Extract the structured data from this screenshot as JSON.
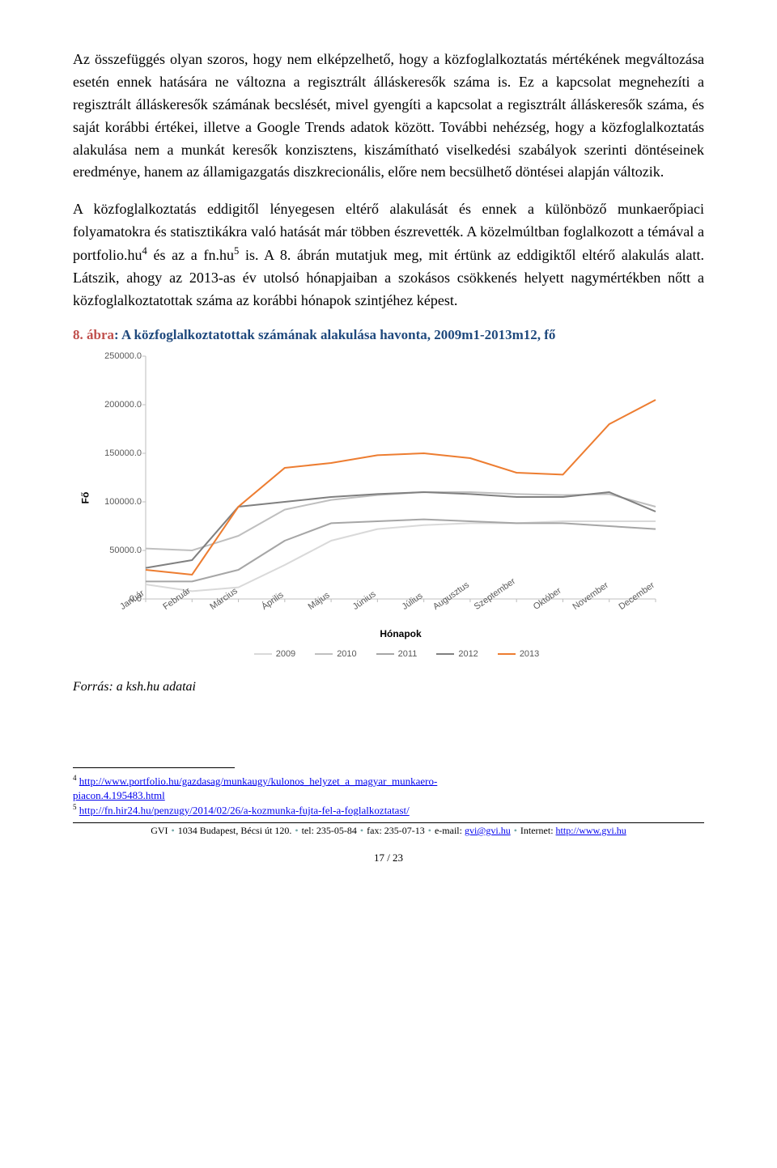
{
  "paragraphs": {
    "p1a": "Az összefüggés olyan szoros, hogy nem elképzelhető, hogy a közfoglalkoztatás mértékének megváltozása esetén ennek hatására ne változna a regisztrált álláskeresők száma is. Ez a kapcsolat megnehezíti a regisztrált álláskeresők számának becslését, mivel gyengíti a kapcsolat a regisztrált álláskeresők száma, és saját korábbi értékei, illetve a Google Trends adatok között. További nehézség, hogy a közfoglalkoztatás alakulása nem a munkát keresők konzisztens, kiszámítható viselkedési szabályok szerinti döntéseinek eredménye, hanem az államigazgatás diszkrecionális, előre nem becsülhető döntései alapján változik.",
    "p2a": "A közfoglalkoztatás eddigitől lényegesen eltérő alakulását és ennek a különböző munkaerőpiaci folyamatokra és statisztikákra való hatását már többen észrevették. A közelmúltban foglalkozott a témával a portfolio.hu",
    "p2b": " és az a fn.hu",
    "p2c": " is. A 8. ábrán mutatjuk meg, mit értünk az eddigiktől eltérő alakulás alatt. Látszik, ahogy az 2013-as év utolsó hónapjaiban a szokásos csökkenés helyett nagymértékben nőtt a közfoglalkoztatottak száma az korábbi hónapok szintjéhez képest.",
    "sup4": "4",
    "sup5": "5"
  },
  "figure": {
    "num": "8. ábra",
    "title": ": A közfoglalkoztatottak számának alakulása havonta, 2009m1-2013m12, fő"
  },
  "chart": {
    "type": "line",
    "ylabel": "Fő",
    "xlabel": "Hónapok",
    "ylim": [
      0,
      250000
    ],
    "ytick_step": 50000,
    "yticks": [
      "0.0",
      "50000.0",
      "100000.0",
      "150000.0",
      "200000.0",
      "250000.0"
    ],
    "categories": [
      "Január",
      "Február",
      "Március",
      "Április",
      "Május",
      "Június",
      "Július",
      "Augusztus",
      "Szeptember",
      "Október",
      "November",
      "December"
    ],
    "grid_color": "#d9d9d9",
    "axis_color": "#bfbfbf",
    "background_color": "#ffffff",
    "label_fontsize": 11,
    "line_width": 2,
    "series": [
      {
        "name": "2009",
        "color": "#d9d9d9",
        "values": [
          15000,
          8000,
          12000,
          35000,
          60000,
          72000,
          76000,
          78000,
          78000,
          80000,
          80000,
          80000
        ]
      },
      {
        "name": "2010",
        "color": "#bfbfbf",
        "values": [
          52000,
          50000,
          65000,
          92000,
          102000,
          107000,
          110000,
          110000,
          108000,
          107000,
          108000,
          95000
        ]
      },
      {
        "name": "2011",
        "color": "#a6a6a6",
        "values": [
          18000,
          18000,
          30000,
          60000,
          78000,
          80000,
          82000,
          80000,
          78000,
          78000,
          75000,
          72000
        ]
      },
      {
        "name": "2012",
        "color": "#808080",
        "values": [
          32000,
          40000,
          95000,
          100000,
          105000,
          108000,
          110000,
          108000,
          105000,
          105000,
          110000,
          90000
        ]
      },
      {
        "name": "2013",
        "color": "#ed7d31",
        "values": [
          30000,
          25000,
          95000,
          135000,
          140000,
          148000,
          150000,
          145000,
          130000,
          128000,
          180000,
          205000
        ]
      }
    ]
  },
  "source": "Forrás: a ksh.hu adatai",
  "footnotes": {
    "n4_sup": "4",
    "n4_pre": " ",
    "n4_link_a": "http://www.portfolio.hu/gazdasag/munkaugy/kulonos_helyzet_a_magyar_munkaero-",
    "n4_link_b": "piacon.4.195483.html",
    "n5_sup": "5",
    "n5_pre": " ",
    "n5_link": "http://fn.hir24.hu/penzugy/2014/02/26/a-kozmunka-fujta-fel-a-foglalkoztatast/"
  },
  "runner": {
    "a": "GVI",
    "b": "1034 Budapest, Bécsi út 120.",
    "c": "tel: 235-05-84",
    "d": "fax: 235-07-13",
    "e": "e-mail: ",
    "email": "gvi@gvi.hu",
    "f": "Internet: ",
    "url": "http://www.gvi.hu"
  },
  "pagenum": "17 / 23"
}
